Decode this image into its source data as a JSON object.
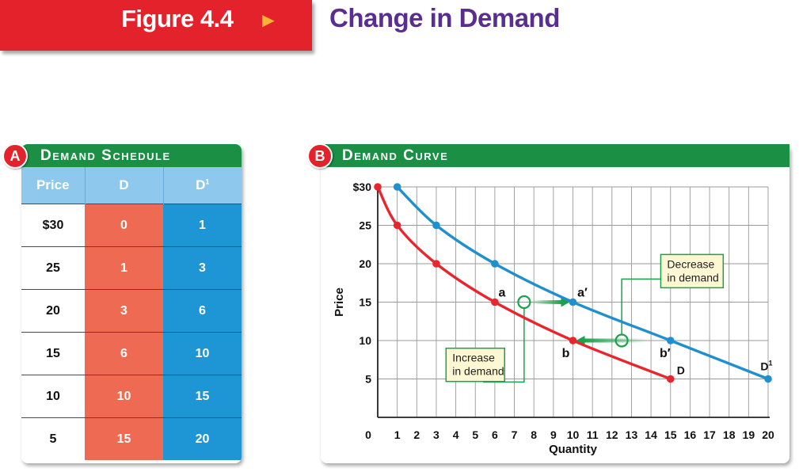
{
  "figure": {
    "label": "Figure 4.4",
    "arrow": "►",
    "title": "Change in Demand"
  },
  "panel_a": {
    "badge": "A",
    "title": "Demand Schedule",
    "headers": [
      "Price",
      "D",
      "D1"
    ],
    "rows": [
      {
        "price": "$30",
        "d": "0",
        "d1": "1"
      },
      {
        "price": "25",
        "d": "1",
        "d1": "3"
      },
      {
        "price": "20",
        "d": "3",
        "d1": "6"
      },
      {
        "price": "15",
        "d": "6",
        "d1": "10"
      },
      {
        "price": "10",
        "d": "10",
        "d1": "15"
      },
      {
        "price": "5",
        "d": "15",
        "d1": "20"
      }
    ]
  },
  "panel_b": {
    "badge": "B",
    "title": "Demand Curve"
  },
  "chart_data": {
    "type": "line",
    "title": "Demand Curve",
    "xlabel": "Quantity",
    "ylabel": "Price",
    "xlim": [
      0,
      20
    ],
    "ylim": [
      0,
      30
    ],
    "x_ticks": [
      "0",
      "1",
      "2",
      "3",
      "4",
      "5",
      "6",
      "7",
      "8",
      "9",
      "10",
      "11",
      "12",
      "13",
      "14",
      "15",
      "16",
      "17",
      "18",
      "19",
      "20"
    ],
    "y_ticks": [
      "$30",
      "25",
      "20",
      "15",
      "10",
      "5"
    ],
    "grid": true,
    "series": [
      {
        "name": "D",
        "color": "#e8262d",
        "points": [
          [
            0,
            30
          ],
          [
            1,
            25
          ],
          [
            3,
            20
          ],
          [
            6,
            15
          ],
          [
            10,
            10
          ],
          [
            15,
            5
          ]
        ]
      },
      {
        "name": "D1",
        "color": "#1f8fd0",
        "points": [
          [
            1,
            30
          ],
          [
            3,
            25
          ],
          [
            6,
            20
          ],
          [
            10,
            15
          ],
          [
            15,
            10
          ],
          [
            20,
            5
          ]
        ]
      }
    ],
    "point_labels": [
      {
        "text": "a",
        "x": 6,
        "y": 15
      },
      {
        "text": "a′",
        "x": 10,
        "y": 15
      },
      {
        "text": "b",
        "x": 10,
        "y": 10
      },
      {
        "text": "b′",
        "x": 15,
        "y": 10
      }
    ],
    "annotations": [
      {
        "text": [
          "Increase",
          "in demand"
        ],
        "arrow_from": [
          7.5,
          15
        ],
        "arrow_to": [
          10,
          15
        ]
      },
      {
        "text": [
          "Decrease",
          "in demand"
        ],
        "arrow_from": [
          12.5,
          10
        ],
        "arrow_to": [
          10,
          10
        ]
      }
    ],
    "colors": {
      "grid": "#999999",
      "annotation": "#1aa34a",
      "box_fill": "#fdf7d4"
    }
  }
}
